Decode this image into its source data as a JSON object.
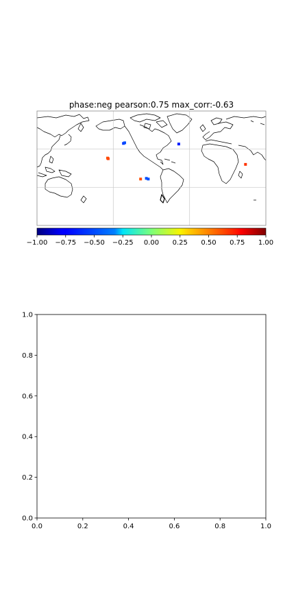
{
  "chart_data": [
    {
      "type": "heatmap",
      "title": "phase:neg   pearson:0.75   max_corr:-0.63",
      "map": "world coastlines, Pacific-centred, longitude/latitude gridlines",
      "cells": [
        {
          "lon": 142,
          "lat": 15,
          "value": 0.65
        },
        {
          "lon": 141,
          "lat": 16,
          "value": 0.6
        },
        {
          "lon": 193,
          "lat": -17,
          "value": 0.6
        },
        {
          "lon": 166,
          "lat": 39,
          "value": -0.65
        },
        {
          "lon": 168,
          "lat": 40,
          "value": -0.6
        },
        {
          "lon": 202,
          "lat": -16,
          "value": -0.6
        },
        {
          "lon": 205,
          "lat": -17,
          "value": -0.6
        },
        {
          "lon": 253,
          "lat": 38,
          "value": -0.7
        },
        {
          "lon": 358,
          "lat": 6,
          "value": 0.65
        }
      ],
      "colorbar": {
        "colormap": "jet",
        "vmin": -1.0,
        "vmax": 1.0,
        "ticks": [
          "−1.00",
          "−0.75",
          "−0.50",
          "−0.25",
          "0.00",
          "0.25",
          "0.50",
          "0.75",
          "1.00"
        ]
      },
      "colors": {
        "coastline": "#000000",
        "grid": "#c8c8c8",
        "frame": "#888888"
      }
    },
    {
      "type": "scatter",
      "title": "",
      "xlabel": "",
      "ylabel": "",
      "xlim": [
        0.0,
        1.0
      ],
      "ylim": [
        0.0,
        1.0
      ],
      "xticks": [
        "0.0",
        "0.2",
        "0.4",
        "0.6",
        "0.8",
        "1.0"
      ],
      "yticks": [
        "0.0",
        "0.2",
        "0.4",
        "0.6",
        "0.8",
        "1.0"
      ],
      "series": []
    }
  ]
}
